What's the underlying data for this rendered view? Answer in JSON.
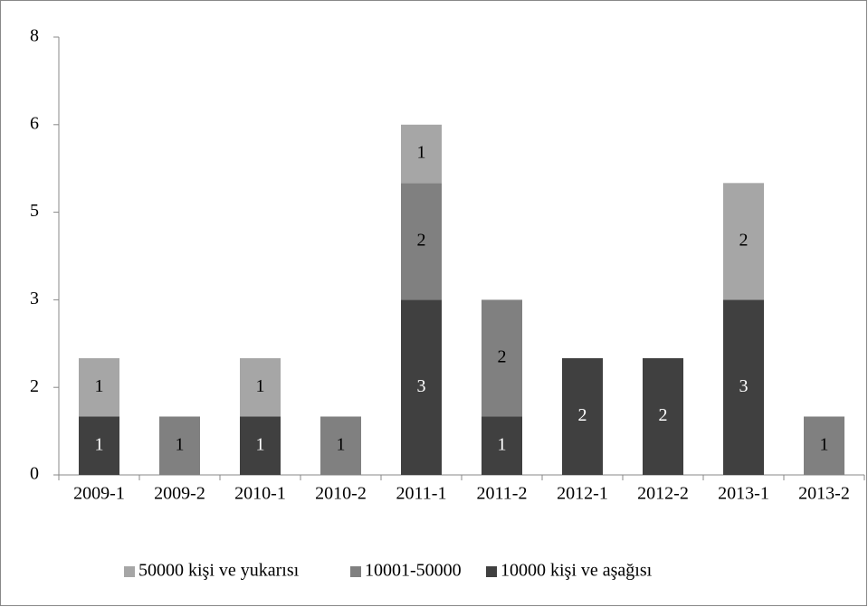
{
  "chart_data": {
    "type": "stacked_bar",
    "categories": [
      "2009-1",
      "2009-2",
      "2010-1",
      "2010-2",
      "2011-1",
      "2011-2",
      "2012-1",
      "2012-2",
      "2013-1",
      "2013-2"
    ],
    "series": [
      {
        "name": "10000 kişi ve aşağısı",
        "color": "#404040",
        "label_color": "#ffffff",
        "values": [
          1,
          null,
          1,
          null,
          3,
          1,
          2,
          2,
          3,
          null
        ]
      },
      {
        "name": "10001-50000",
        "color": "#808080",
        "label_color": "#000000",
        "values": [
          null,
          1,
          null,
          1,
          2,
          2,
          null,
          null,
          null,
          1
        ]
      },
      {
        "name": "50000 kişi ve yukarısı",
        "color": "#a6a6a6",
        "label_color": "#000000",
        "values": [
          1,
          null,
          1,
          null,
          1,
          null,
          null,
          null,
          2,
          null
        ]
      }
    ],
    "ylim": [
      0,
      7.5
    ],
    "yticks": [
      0,
      {
        "value": 1.5,
        "label": "2"
      },
      3,
      {
        "value": 4.5,
        "label": "5"
      },
      6,
      {
        "value": 7.5,
        "label": "8"
      }
    ],
    "legend": "bottom"
  }
}
